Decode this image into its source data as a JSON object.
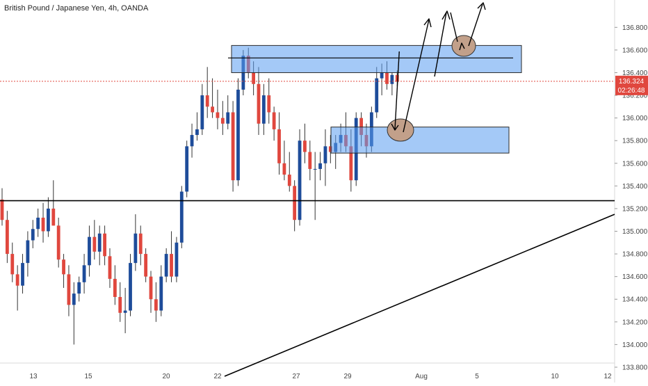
{
  "header": {
    "title": "British Pound / Japanese Yen, 4h, OANDA"
  },
  "price_badge": {
    "price": "136.324",
    "countdown": "02:26:48"
  },
  "colors": {
    "up": "#1e4c9a",
    "down": "#e0473e",
    "zone_fill": "#5a9df0",
    "zone_stroke": "#2a2a2a",
    "circle_fill": "#c2a08a",
    "current_price_line": "#e0473e",
    "axis_text": "#444444"
  },
  "chart_data": {
    "type": "candlestick",
    "instrument": "British Pound / Japanese Yen",
    "timeframe": "4h",
    "source": "OANDA",
    "ylim": [
      133.72,
      136.98
    ],
    "y_ticks": [
      "133.800",
      "134.000",
      "134.200",
      "134.400",
      "134.600",
      "134.800",
      "135.000",
      "135.200",
      "135.400",
      "135.600",
      "135.800",
      "136.000",
      "136.200",
      "136.400",
      "136.600",
      "136.800"
    ],
    "x_ticks": [
      "13",
      "15",
      "20",
      "22",
      "27",
      "29",
      "Aug",
      "5",
      "10",
      "12"
    ],
    "last_price": 136.324,
    "horizontal_lines": [
      {
        "value": 135.27,
        "color": "#000000"
      }
    ],
    "trendline": {
      "from": {
        "x": "22",
        "y": 133.72
      },
      "to": {
        "x": "12",
        "y": 135.15
      }
    },
    "zones": [
      {
        "name": "resistance-zone",
        "top": 136.64,
        "bottom": 136.4,
        "from": "22",
        "to": "5",
        "midline": 136.53
      },
      {
        "name": "support-zone",
        "top": 135.92,
        "bottom": 135.69,
        "from": "29",
        "to": "Aug+"
      }
    ],
    "candles": [
      [
        135.28,
        135.38,
        135.05,
        135.1
      ],
      [
        135.1,
        135.18,
        134.72,
        134.8
      ],
      [
        134.8,
        134.9,
        134.55,
        134.62
      ],
      [
        134.62,
        134.7,
        134.3,
        134.52
      ],
      [
        134.52,
        134.8,
        134.45,
        134.72
      ],
      [
        134.72,
        135.0,
        134.6,
        134.92
      ],
      [
        134.92,
        135.1,
        134.85,
        135.02
      ],
      [
        135.02,
        135.2,
        134.95,
        135.12
      ],
      [
        135.12,
        135.25,
        134.9,
        135.0
      ],
      [
        135.0,
        135.3,
        134.95,
        135.2
      ],
      [
        135.2,
        135.45,
        135.05,
        135.05
      ],
      [
        135.05,
        135.12,
        134.68,
        134.75
      ],
      [
        134.75,
        134.8,
        134.5,
        134.62
      ],
      [
        134.62,
        134.7,
        134.25,
        134.35
      ],
      [
        134.35,
        134.55,
        134.0,
        134.45
      ],
      [
        134.45,
        134.6,
        134.38,
        134.55
      ],
      [
        134.55,
        134.8,
        134.45,
        134.7
      ],
      [
        134.7,
        135.05,
        134.6,
        134.95
      ],
      [
        134.95,
        135.1,
        134.75,
        134.82
      ],
      [
        134.82,
        135.05,
        134.7,
        134.98
      ],
      [
        134.98,
        135.05,
        134.7,
        134.78
      ],
      [
        134.78,
        134.85,
        134.5,
        134.58
      ],
      [
        134.58,
        134.7,
        134.35,
        134.42
      ],
      [
        134.42,
        134.55,
        134.2,
        134.28
      ],
      [
        134.28,
        134.5,
        134.1,
        134.3
      ],
      [
        134.3,
        134.8,
        134.25,
        134.72
      ],
      [
        134.72,
        135.15,
        134.65,
        134.98
      ],
      [
        134.98,
        135.05,
        134.7,
        134.8
      ],
      [
        134.8,
        134.85,
        134.55,
        134.6
      ],
      [
        134.6,
        134.65,
        134.28,
        134.4
      ],
      [
        134.4,
        134.55,
        134.2,
        134.3
      ],
      [
        134.3,
        134.7,
        134.25,
        134.6
      ],
      [
        134.6,
        134.85,
        134.55,
        134.8
      ],
      [
        134.8,
        135.0,
        134.55,
        134.6
      ],
      [
        134.6,
        134.95,
        134.55,
        134.9
      ],
      [
        134.9,
        135.4,
        134.85,
        135.35
      ],
      [
        135.35,
        135.8,
        135.3,
        135.75
      ],
      [
        135.75,
        135.95,
        135.65,
        135.85
      ],
      [
        135.85,
        136.05,
        135.8,
        135.9
      ],
      [
        135.9,
        136.3,
        135.85,
        136.2
      ],
      [
        136.2,
        136.45,
        136.0,
        136.1
      ],
      [
        136.1,
        136.35,
        136.0,
        136.05
      ],
      [
        136.05,
        136.25,
        135.9,
        136.0
      ],
      [
        136.0,
        136.15,
        135.85,
        135.95
      ],
      [
        135.95,
        136.2,
        135.9,
        136.05
      ],
      [
        136.05,
        136.15,
        135.35,
        135.45
      ],
      [
        135.45,
        136.35,
        135.4,
        136.25
      ],
      [
        136.25,
        136.6,
        136.2,
        136.55
      ],
      [
        136.55,
        136.62,
        136.35,
        136.4
      ],
      [
        136.4,
        136.5,
        136.2,
        136.3
      ],
      [
        136.3,
        136.45,
        135.85,
        135.95
      ],
      [
        135.95,
        136.3,
        135.85,
        136.2
      ],
      [
        136.2,
        136.35,
        135.95,
        136.05
      ],
      [
        136.05,
        136.1,
        135.8,
        135.9
      ],
      [
        135.9,
        136.05,
        135.5,
        135.6
      ],
      [
        135.6,
        135.8,
        135.45,
        135.5
      ],
      [
        135.5,
        135.7,
        135.35,
        135.4
      ],
      [
        135.4,
        135.45,
        135.0,
        135.1
      ],
      [
        135.1,
        135.9,
        135.05,
        135.8
      ],
      [
        135.8,
        135.95,
        135.6,
        135.7
      ],
      [
        135.7,
        135.8,
        135.45,
        135.55
      ],
      [
        135.55,
        135.7,
        135.1,
        135.55
      ],
      [
        135.55,
        135.7,
        135.45,
        135.6
      ],
      [
        135.6,
        135.9,
        135.4,
        135.75
      ],
      [
        135.75,
        135.85,
        135.6,
        135.7
      ],
      [
        135.7,
        135.85,
        135.55,
        135.78
      ],
      [
        135.78,
        135.95,
        135.7,
        135.85
      ],
      [
        135.85,
        136.05,
        135.7,
        135.75
      ],
      [
        135.75,
        135.9,
        135.35,
        135.45
      ],
      [
        135.45,
        136.05,
        135.4,
        136.0
      ],
      [
        136.0,
        136.05,
        135.75,
        135.85
      ],
      [
        135.85,
        135.95,
        135.65,
        135.75
      ],
      [
        135.75,
        136.1,
        135.7,
        136.05
      ],
      [
        136.05,
        136.45,
        136.0,
        136.35
      ],
      [
        136.35,
        136.48,
        136.2,
        136.4
      ],
      [
        136.4,
        136.5,
        136.25,
        136.3
      ],
      [
        136.3,
        136.4,
        136.2,
        136.38
      ],
      [
        136.38,
        136.42,
        136.28,
        136.32
      ]
    ]
  }
}
